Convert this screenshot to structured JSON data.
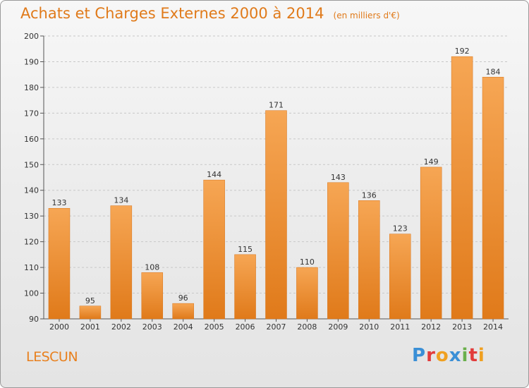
{
  "header": {
    "title": "Achats et Charges Externes 2000 à 2014",
    "unit": "(en milliers d'€)"
  },
  "footer": {
    "commune": "LESCUN",
    "logo_text": "Proxiti",
    "logo_letters": [
      {
        "ch": "P",
        "color": "#3a8fd6"
      },
      {
        "ch": "r",
        "color": "#e23b3b"
      },
      {
        "ch": "o",
        "color": "#f0a020"
      },
      {
        "ch": "x",
        "color": "#3a8fd6"
      },
      {
        "ch": "i",
        "color": "#6ab04c"
      },
      {
        "ch": "t",
        "color": "#e23b3b"
      },
      {
        "ch": "i",
        "color": "#f0a020"
      }
    ]
  },
  "colors": {
    "bar_light": "#f6a654",
    "bar_dark": "#e07a1a",
    "title": "#e07a1a",
    "text": "#333333",
    "grid": "#c8c8c8"
  },
  "chart_data": {
    "type": "bar",
    "title": "Achats et Charges Externes 2000 à 2014",
    "subtitle": "(en milliers d'€)",
    "xlabel": "",
    "ylabel": "",
    "categories": [
      "2000",
      "2001",
      "2002",
      "2003",
      "2004",
      "2005",
      "2006",
      "2007",
      "2008",
      "2009",
      "2010",
      "2011",
      "2012",
      "2013",
      "2014"
    ],
    "values": [
      133,
      95,
      134,
      108,
      96,
      144,
      115,
      171,
      110,
      143,
      136,
      123,
      149,
      192,
      184
    ],
    "ylim": [
      90,
      200
    ],
    "yticks": [
      90,
      100,
      110,
      120,
      130,
      140,
      150,
      160,
      170,
      180,
      190,
      200
    ],
    "grid": "horizontal dashed",
    "legend": "none"
  }
}
